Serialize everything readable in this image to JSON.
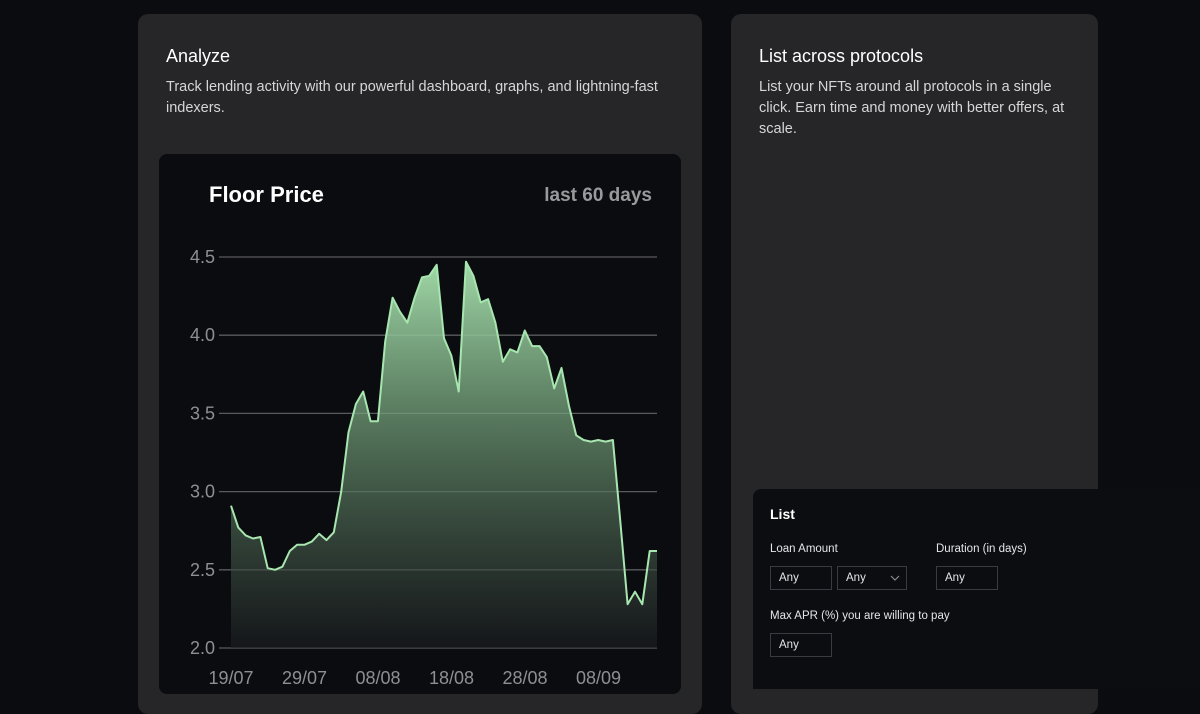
{
  "analyze": {
    "title": "Analyze",
    "description": "Track lending activity with our powerful dashboard, graphs, and lightning-fast indexers."
  },
  "list_across": {
    "title": "List across protocols",
    "description": "List your NFTs around all protocols in a single click. Earn time and money with better offers, at scale."
  },
  "chart_data": {
    "type": "area",
    "title": "Floor Price",
    "subtitle": "last 60 days",
    "ylim": [
      2.0,
      4.5
    ],
    "yticks": [
      2.0,
      2.5,
      3.0,
      3.5,
      4.0,
      4.5
    ],
    "ytick_labels": [
      "2.0",
      "2.5",
      "3.0",
      "3.5",
      "4.0",
      "4.5"
    ],
    "xtick_labels": [
      "19/07",
      "29/07",
      "08/08",
      "18/08",
      "28/08",
      "08/09"
    ],
    "grid": true,
    "line_color": "#a8e6b0",
    "values": [
      2.91,
      2.77,
      2.72,
      2.7,
      2.71,
      2.51,
      2.5,
      2.52,
      2.62,
      2.66,
      2.66,
      2.68,
      2.73,
      2.69,
      2.74,
      3.0,
      3.38,
      3.56,
      3.64,
      3.45,
      3.45,
      3.96,
      4.24,
      4.15,
      4.08,
      4.24,
      4.37,
      4.38,
      4.45,
      3.98,
      3.87,
      3.64,
      4.47,
      4.38,
      4.21,
      4.23,
      4.08,
      3.83,
      3.91,
      3.89,
      4.03,
      3.93,
      3.93,
      3.86,
      3.66,
      3.79,
      3.55,
      3.36,
      3.33,
      3.32,
      3.33,
      3.32,
      3.33,
      2.81,
      2.28,
      2.36,
      2.28,
      2.62,
      2.62
    ]
  },
  "list_form": {
    "title": "List",
    "loan_amount_label": "Loan Amount",
    "loan_amount_value": "Any",
    "currency_value": "Any",
    "duration_label": "Duration (in days)",
    "duration_value": "Any",
    "apr_label": "Max APR (%) you are willing to pay",
    "apr_value": "Any"
  }
}
